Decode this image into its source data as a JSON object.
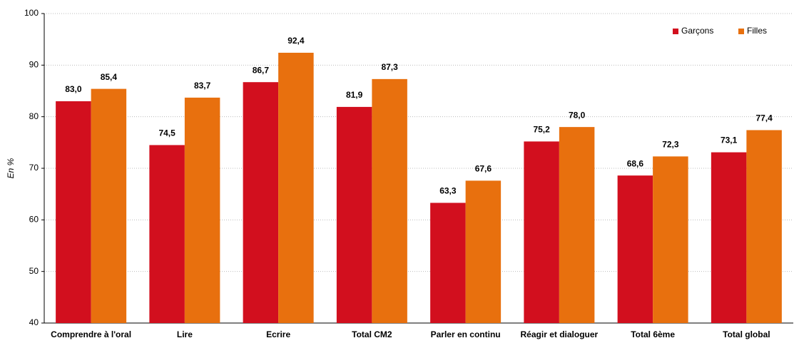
{
  "chart_data": {
    "type": "bar",
    "ylabel": "En %",
    "categories": [
      "Comprendre à l'oral",
      "Lire",
      "Ecrire",
      "Total CM2",
      "Parler en continu",
      "Réagir et dialoguer",
      "Total 6ème",
      "Total global"
    ],
    "series": [
      {
        "name": "Garçons",
        "color": "#d20f1e",
        "values": [
          83.0,
          74.5,
          86.7,
          81.9,
          63.3,
          75.2,
          68.6,
          73.1
        ],
        "value_labels": [
          "83,0",
          "74,5",
          "86,7",
          "81,9",
          "63,3",
          "75,2",
          "68,6",
          "73,1"
        ]
      },
      {
        "name": "Filles",
        "color": "#e8700e",
        "values": [
          85.4,
          83.7,
          92.4,
          87.3,
          67.6,
          78.0,
          72.3,
          77.4
        ],
        "value_labels": [
          "85,4",
          "83,7",
          "92,4",
          "87,3",
          "67,6",
          "78,0",
          "72,3",
          "77,4"
        ]
      }
    ],
    "ylim": [
      40,
      100
    ],
    "yticks": [
      40,
      50,
      60,
      70,
      80,
      90,
      100
    ],
    "grid": true,
    "legend": "top-right"
  }
}
